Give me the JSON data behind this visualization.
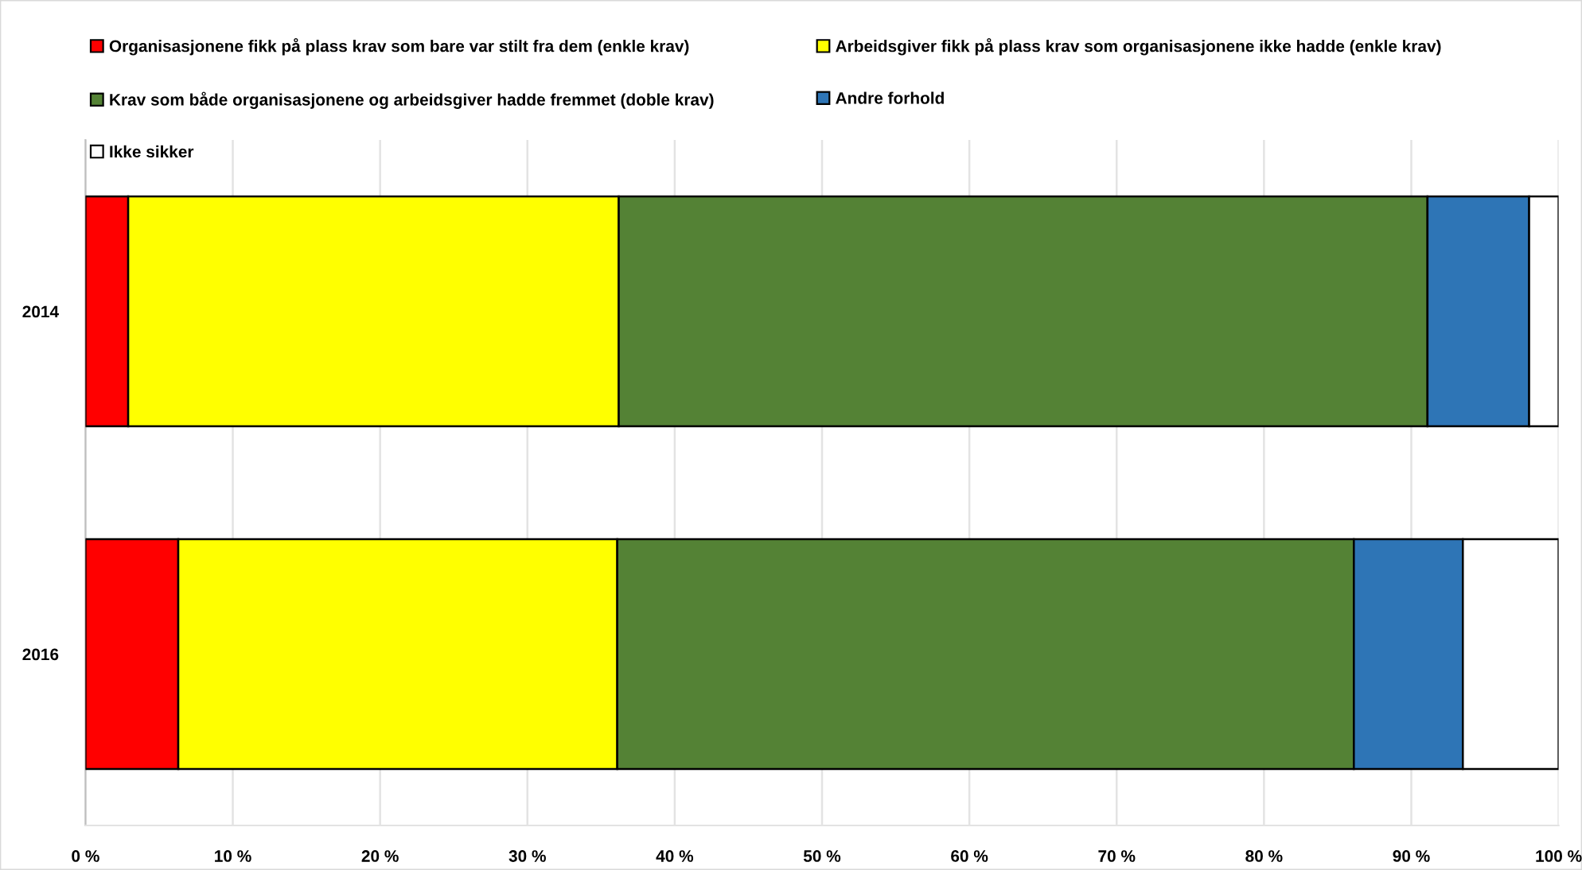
{
  "chart_data": {
    "type": "bar",
    "orientation": "horizontal",
    "stacked": true,
    "categories": [
      "2014",
      "2016"
    ],
    "series": [
      {
        "name": "Organisasjonene fikk på plass krav som bare var stilt fra dem (enkle krav)",
        "color": "#ff0000",
        "values": [
          2.9,
          6.3
        ]
      },
      {
        "name": "Arbeidsgiver fikk på plass krav som organisasjonene ikke hadde (enkle krav)",
        "color": "#ffff00",
        "values": [
          33.3,
          29.8
        ]
      },
      {
        "name": "Krav som både organisasjonene og arbeidsgiver hadde fremmet (doble krav)",
        "color": "#548235",
        "values": [
          54.9,
          50.0
        ]
      },
      {
        "name": "Andre forhold",
        "color": "#2e75b6",
        "values": [
          6.9,
          7.4
        ]
      },
      {
        "name": "Ikke sikker",
        "color": "#ffffff",
        "values": [
          2.0,
          6.5
        ]
      }
    ],
    "xlim": [
      0,
      100
    ],
    "xticks": [
      {
        "value": 0,
        "label": "0 %"
      },
      {
        "value": 10,
        "label": "10 %"
      },
      {
        "value": 20,
        "label": "20 %"
      },
      {
        "value": 30,
        "label": "30 %"
      },
      {
        "value": 40,
        "label": "40 %"
      },
      {
        "value": 50,
        "label": "50 %"
      },
      {
        "value": 60,
        "label": "60 %"
      },
      {
        "value": 70,
        "label": "70 %"
      },
      {
        "value": 80,
        "label": "80 %"
      },
      {
        "value": 90,
        "label": "90 %"
      },
      {
        "value": 100,
        "label": "100 %"
      }
    ],
    "grid": "x",
    "legend": "top"
  }
}
